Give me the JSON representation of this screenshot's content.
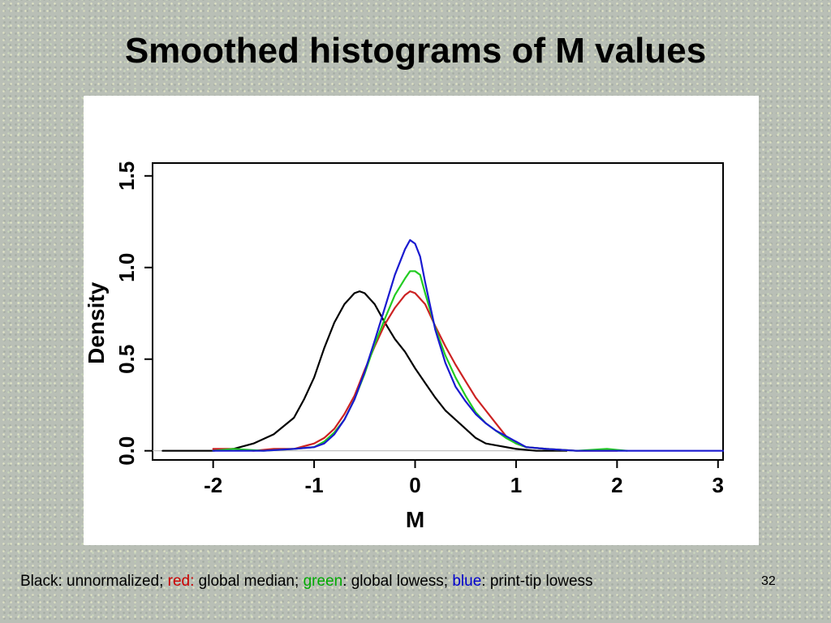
{
  "slide": {
    "title": "Smoothed histograms of M values",
    "number": "32"
  },
  "caption": {
    "black_part": "Black: unnormalized; ",
    "red_word": "red:",
    "red_rest": " global median; ",
    "green_word": "green",
    "green_rest": ": global lowess; ",
    "blue_word": "blue",
    "blue_rest": ": print-tip lowess"
  },
  "colors": {
    "black": "#000000",
    "red": "#cc2222",
    "green": "#22cc22",
    "blue": "#1a1ad0",
    "baseline": "#bbbbbb"
  },
  "chart_data": {
    "type": "line",
    "title": "",
    "xlabel": "M",
    "ylabel": "Density",
    "xlim": [
      -2.6,
      3.05
    ],
    "ylim": [
      -0.05,
      1.57
    ],
    "xticks": [
      -2,
      -1,
      0,
      1,
      2,
      3
    ],
    "yticks": [
      0.0,
      0.5,
      1.0,
      1.5
    ],
    "xtick_labels": [
      "-2",
      "-1",
      "0",
      "1",
      "2",
      "3"
    ],
    "ytick_labels": [
      "0.0",
      "0.5",
      "1.0",
      "1.5"
    ],
    "grid": false,
    "baseline_y": 0,
    "series": [
      {
        "name": "unnormalized",
        "color": "black",
        "points": [
          [
            -2.5,
            0.0
          ],
          [
            -2.0,
            0.0
          ],
          [
            -1.8,
            0.01
          ],
          [
            -1.6,
            0.04
          ],
          [
            -1.4,
            0.09
          ],
          [
            -1.2,
            0.18
          ],
          [
            -1.1,
            0.28
          ],
          [
            -1.0,
            0.4
          ],
          [
            -0.9,
            0.56
          ],
          [
            -0.8,
            0.7
          ],
          [
            -0.7,
            0.8
          ],
          [
            -0.6,
            0.86
          ],
          [
            -0.55,
            0.87
          ],
          [
            -0.5,
            0.86
          ],
          [
            -0.4,
            0.8
          ],
          [
            -0.3,
            0.7
          ],
          [
            -0.2,
            0.61
          ],
          [
            -0.1,
            0.54
          ],
          [
            0.0,
            0.45
          ],
          [
            0.1,
            0.37
          ],
          [
            0.2,
            0.29
          ],
          [
            0.3,
            0.22
          ],
          [
            0.4,
            0.17
          ],
          [
            0.5,
            0.12
          ],
          [
            0.6,
            0.07
          ],
          [
            0.7,
            0.04
          ],
          [
            0.8,
            0.03
          ],
          [
            1.0,
            0.01
          ],
          [
            1.2,
            0.0
          ],
          [
            1.5,
            0.0
          ]
        ]
      },
      {
        "name": "global median",
        "color": "red",
        "points": [
          [
            -2.0,
            0.01
          ],
          [
            -1.8,
            0.01
          ],
          [
            -1.6,
            0.0
          ],
          [
            -1.4,
            0.01
          ],
          [
            -1.2,
            0.01
          ],
          [
            -1.0,
            0.04
          ],
          [
            -0.9,
            0.07
          ],
          [
            -0.8,
            0.12
          ],
          [
            -0.7,
            0.2
          ],
          [
            -0.6,
            0.3
          ],
          [
            -0.5,
            0.44
          ],
          [
            -0.4,
            0.57
          ],
          [
            -0.3,
            0.69
          ],
          [
            -0.2,
            0.78
          ],
          [
            -0.1,
            0.85
          ],
          [
            -0.05,
            0.87
          ],
          [
            0.0,
            0.86
          ],
          [
            0.1,
            0.8
          ],
          [
            0.2,
            0.68
          ],
          [
            0.3,
            0.57
          ],
          [
            0.4,
            0.47
          ],
          [
            0.5,
            0.38
          ],
          [
            0.6,
            0.29
          ],
          [
            0.7,
            0.22
          ],
          [
            0.8,
            0.15
          ],
          [
            0.9,
            0.08
          ],
          [
            1.0,
            0.04
          ],
          [
            1.1,
            0.02
          ],
          [
            1.3,
            0.01
          ],
          [
            1.6,
            0.0
          ],
          [
            2.0,
            0.0
          ]
        ]
      },
      {
        "name": "global lowess",
        "color": "green",
        "points": [
          [
            -2.0,
            0.0
          ],
          [
            -1.8,
            0.01
          ],
          [
            -1.5,
            0.0
          ],
          [
            -1.2,
            0.01
          ],
          [
            -1.0,
            0.02
          ],
          [
            -0.9,
            0.05
          ],
          [
            -0.8,
            0.1
          ],
          [
            -0.7,
            0.17
          ],
          [
            -0.6,
            0.28
          ],
          [
            -0.5,
            0.42
          ],
          [
            -0.4,
            0.58
          ],
          [
            -0.3,
            0.72
          ],
          [
            -0.2,
            0.85
          ],
          [
            -0.1,
            0.94
          ],
          [
            -0.05,
            0.98
          ],
          [
            0.0,
            0.98
          ],
          [
            0.05,
            0.96
          ],
          [
            0.1,
            0.86
          ],
          [
            0.2,
            0.67
          ],
          [
            0.3,
            0.52
          ],
          [
            0.4,
            0.4
          ],
          [
            0.5,
            0.3
          ],
          [
            0.6,
            0.21
          ],
          [
            0.7,
            0.15
          ],
          [
            0.8,
            0.11
          ],
          [
            0.9,
            0.07
          ],
          [
            1.0,
            0.04
          ],
          [
            1.1,
            0.02
          ],
          [
            1.3,
            0.01
          ],
          [
            1.6,
            0.0
          ],
          [
            1.9,
            0.01
          ],
          [
            2.1,
            0.0
          ]
        ]
      },
      {
        "name": "print-tip lowess",
        "color": "blue",
        "points": [
          [
            -2.0,
            0.0
          ],
          [
            -1.5,
            0.0
          ],
          [
            -1.2,
            0.01
          ],
          [
            -1.0,
            0.02
          ],
          [
            -0.9,
            0.04
          ],
          [
            -0.8,
            0.09
          ],
          [
            -0.7,
            0.17
          ],
          [
            -0.6,
            0.28
          ],
          [
            -0.5,
            0.43
          ],
          [
            -0.4,
            0.6
          ],
          [
            -0.3,
            0.78
          ],
          [
            -0.2,
            0.96
          ],
          [
            -0.1,
            1.1
          ],
          [
            -0.05,
            1.15
          ],
          [
            0.0,
            1.13
          ],
          [
            0.05,
            1.06
          ],
          [
            0.1,
            0.92
          ],
          [
            0.2,
            0.66
          ],
          [
            0.3,
            0.48
          ],
          [
            0.4,
            0.35
          ],
          [
            0.5,
            0.27
          ],
          [
            0.6,
            0.2
          ],
          [
            0.7,
            0.15
          ],
          [
            0.8,
            0.11
          ],
          [
            0.9,
            0.08
          ],
          [
            1.0,
            0.05
          ],
          [
            1.1,
            0.02
          ],
          [
            1.3,
            0.01
          ],
          [
            1.6,
            0.0
          ],
          [
            2.0,
            0.0
          ],
          [
            3.05,
            0.0
          ]
        ]
      }
    ]
  }
}
